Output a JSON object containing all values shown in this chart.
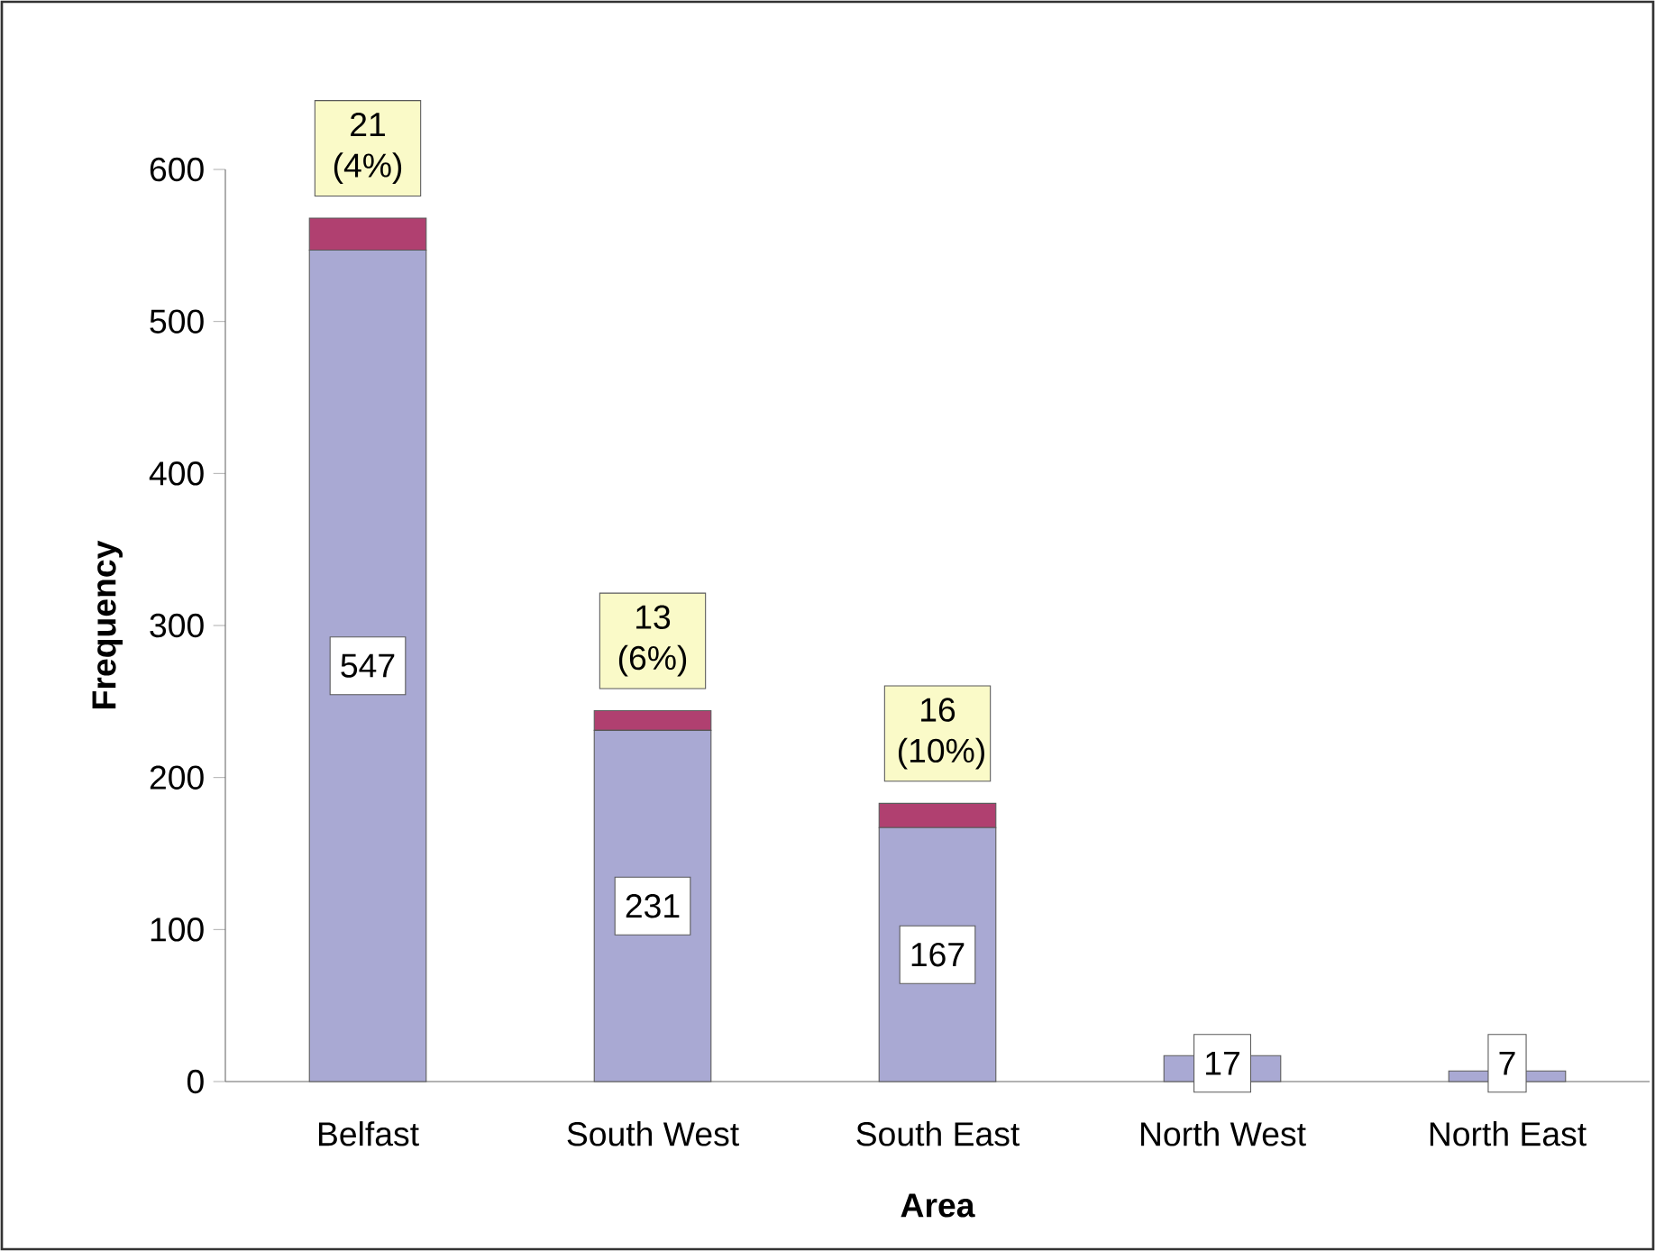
{
  "chart_data": {
    "type": "bar",
    "stacked": true,
    "xlabel": "Area",
    "ylabel": "Frequency",
    "categories": [
      "Belfast",
      "South West",
      "South East",
      "North West",
      "North East"
    ],
    "series": [
      {
        "color": "#a9a9d3",
        "values": [
          547,
          231,
          167,
          17,
          7
        ],
        "value_labels": [
          "547",
          "231",
          "167",
          "17",
          "7"
        ]
      },
      {
        "color": "#b04070",
        "values": [
          21,
          13,
          16,
          null,
          null
        ],
        "value_labels": [
          "21 (4%)",
          "13 (6%)",
          "16 (10%)",
          null,
          null
        ]
      }
    ],
    "ylim": [
      0,
      600
    ],
    "yticks": [
      0,
      100,
      200,
      300,
      400,
      500,
      600
    ]
  }
}
